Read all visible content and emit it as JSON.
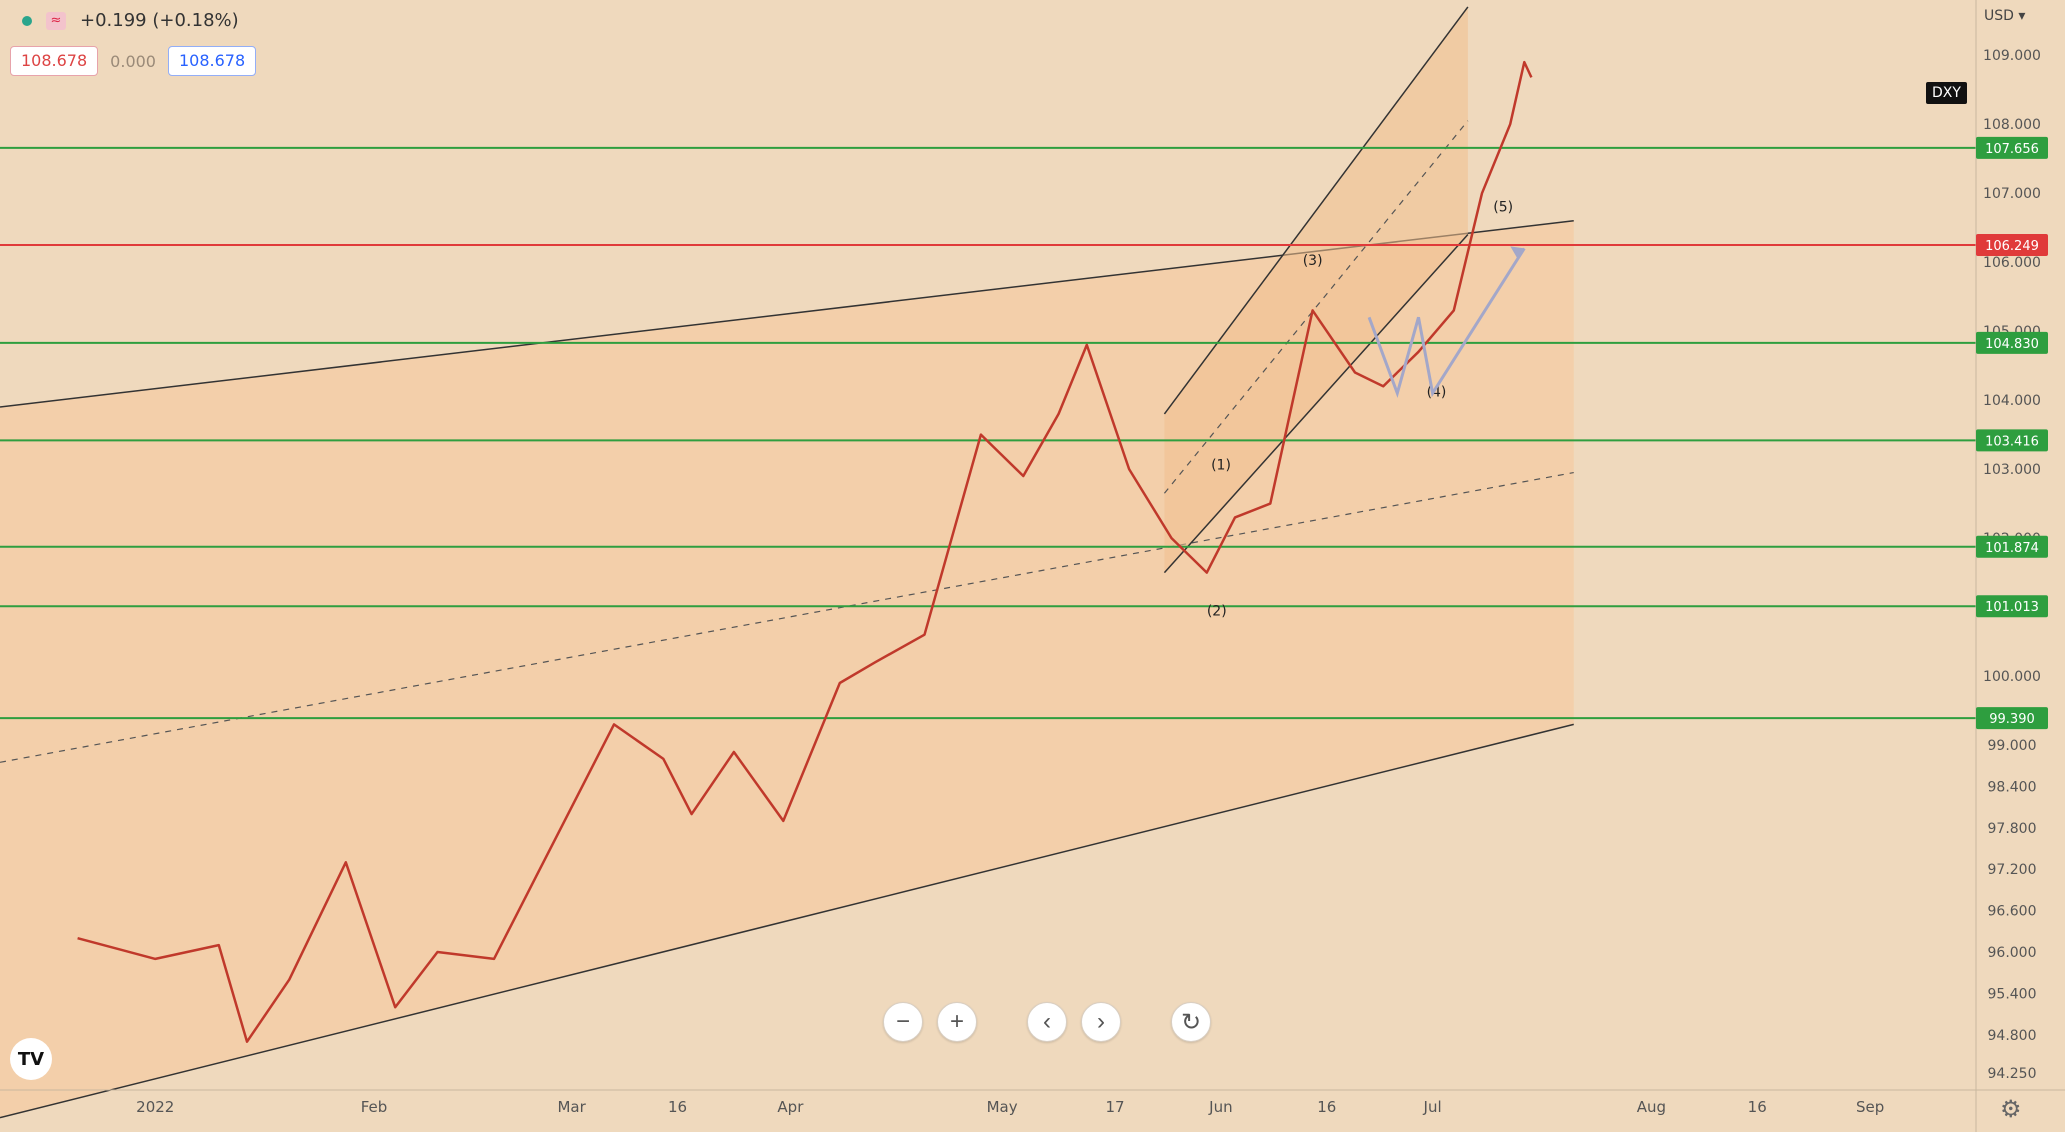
{
  "legend": {
    "change": "+0.199 (+0.18%)",
    "price_left": "108.678",
    "spread": "0.000",
    "price_right": "108.678"
  },
  "symbol": "DXY",
  "currency": "USD",
  "toolbar": {
    "buttons": [
      "−",
      "+",
      "‹",
      "›",
      "↻"
    ]
  },
  "logo": "TV",
  "chart_data": {
    "type": "line",
    "xlabel": "",
    "ylabel": "",
    "x_axis_ticks": [
      "2022",
      "Feb",
      "Mar",
      "16",
      "Apr",
      "May",
      "17",
      "Jun",
      "16",
      "Jul",
      "Aug",
      "16",
      "Sep"
    ],
    "y_axis_ticks": [
      "109.000",
      "108.000",
      "107.000",
      "106.000",
      "105.000",
      "104.000",
      "103.000",
      "102.000",
      "101.000",
      "100.000",
      "99.000",
      "98.400",
      "97.800",
      "97.200",
      "96.600",
      "96.000",
      "95.400",
      "94.800",
      "94.250"
    ],
    "ylim": [
      94.0,
      109.8
    ],
    "horizontal_levels": [
      {
        "value": 107.656,
        "label": "107.656",
        "color": "#2e9e3f"
      },
      {
        "value": 106.249,
        "label": "106.249",
        "color": "#e03a3a"
      },
      {
        "value": 104.83,
        "label": "104.830",
        "color": "#2e9e3f"
      },
      {
        "value": 103.416,
        "label": "103.416",
        "color": "#2e9e3f"
      },
      {
        "value": 101.874,
        "label": "101.874",
        "color": "#2e9e3f"
      },
      {
        "value": 101.013,
        "label": "101.013",
        "color": "#2e9e3f"
      },
      {
        "value": 99.39,
        "label": "99.390",
        "color": "#2e9e3f"
      }
    ],
    "wave_labels": [
      "(1)",
      "(2)",
      "(3)",
      "(4)",
      "(5)"
    ],
    "series": [
      {
        "values": [
          {
            "x": "Dec-20",
            "y": 96.2
          },
          {
            "x": "Jan-01",
            "y": 95.9
          },
          {
            "x": "Jan-10",
            "y": 96.1
          },
          {
            "x": "Jan-14",
            "y": 94.7
          },
          {
            "x": "Jan-20",
            "y": 95.6
          },
          {
            "x": "Jan-28",
            "y": 97.3
          },
          {
            "x": "Feb-04",
            "y": 95.2
          },
          {
            "x": "Feb-10",
            "y": 96.0
          },
          {
            "x": "Feb-18",
            "y": 95.9
          },
          {
            "x": "Feb-24",
            "y": 97.1
          },
          {
            "x": "Mar-07",
            "y": 99.3
          },
          {
            "x": "Mar-14",
            "y": 98.8
          },
          {
            "x": "Mar-18",
            "y": 98.0
          },
          {
            "x": "Mar-24",
            "y": 98.9
          },
          {
            "x": "Mar-31",
            "y": 97.9
          },
          {
            "x": "Apr-08",
            "y": 99.9
          },
          {
            "x": "Apr-13",
            "y": 100.2
          },
          {
            "x": "Apr-20",
            "y": 100.6
          },
          {
            "x": "Apr-28",
            "y": 103.5
          },
          {
            "x": "May-04",
            "y": 102.9
          },
          {
            "x": "May-09",
            "y": 103.8
          },
          {
            "x": "May-13",
            "y": 104.8
          },
          {
            "x": "May-19",
            "y": 103.0
          },
          {
            "x": "May-25",
            "y": 102.0
          },
          {
            "x": "May-30",
            "y": 101.5
          },
          {
            "x": "Jun-03",
            "y": 102.3
          },
          {
            "x": "Jun-08",
            "y": 102.5
          },
          {
            "x": "Jun-14",
            "y": 105.3
          },
          {
            "x": "Jun-20",
            "y": 104.4
          },
          {
            "x": "Jun-24",
            "y": 104.2
          },
          {
            "x": "Jun-29",
            "y": 104.7
          },
          {
            "x": "Jul-04",
            "y": 105.3
          },
          {
            "x": "Jul-08",
            "y": 107.0
          },
          {
            "x": "Jul-12",
            "y": 108.0
          },
          {
            "x": "Jul-14",
            "y": 108.9
          },
          {
            "x": "Jul-15",
            "y": 108.678
          }
        ]
      }
    ]
  }
}
